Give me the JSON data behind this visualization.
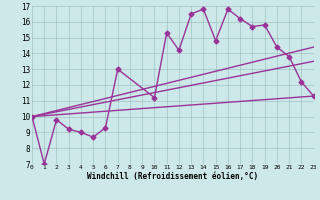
{
  "xlabel": "Windchill (Refroidissement éolien,°C)",
  "background_color": "#cce8e8",
  "line_color": "#993399",
  "xmin": 0,
  "xmax": 23,
  "ymin": 7,
  "ymax": 17,
  "yticks": [
    7,
    8,
    9,
    10,
    11,
    12,
    13,
    14,
    15,
    16,
    17
  ],
  "xticks": [
    0,
    1,
    2,
    3,
    4,
    5,
    6,
    7,
    8,
    9,
    10,
    11,
    12,
    13,
    14,
    15,
    16,
    17,
    18,
    19,
    20,
    21,
    22,
    23
  ],
  "series": [
    {
      "x": [
        0,
        1,
        2,
        3,
        4,
        5,
        6,
        7,
        10,
        11,
        12,
        13,
        14,
        15,
        16,
        17,
        18,
        19,
        20,
        21,
        22,
        23
      ],
      "y": [
        10,
        7,
        9.8,
        9.2,
        9.0,
        8.7,
        9.3,
        13.0,
        11.2,
        15.3,
        14.2,
        16.5,
        16.8,
        14.8,
        16.8,
        16.2,
        15.7,
        15.8,
        14.4,
        13.8,
        12.2,
        11.3
      ],
      "marker": "D",
      "markersize": 2.5,
      "linewidth": 1.0
    },
    {
      "x": [
        0,
        23
      ],
      "y": [
        10,
        14.4
      ],
      "marker": null,
      "linewidth": 1.0
    },
    {
      "x": [
        0,
        23
      ],
      "y": [
        10,
        13.5
      ],
      "marker": null,
      "linewidth": 1.0
    },
    {
      "x": [
        0,
        23
      ],
      "y": [
        10,
        11.3
      ],
      "marker": null,
      "linewidth": 1.0
    }
  ]
}
